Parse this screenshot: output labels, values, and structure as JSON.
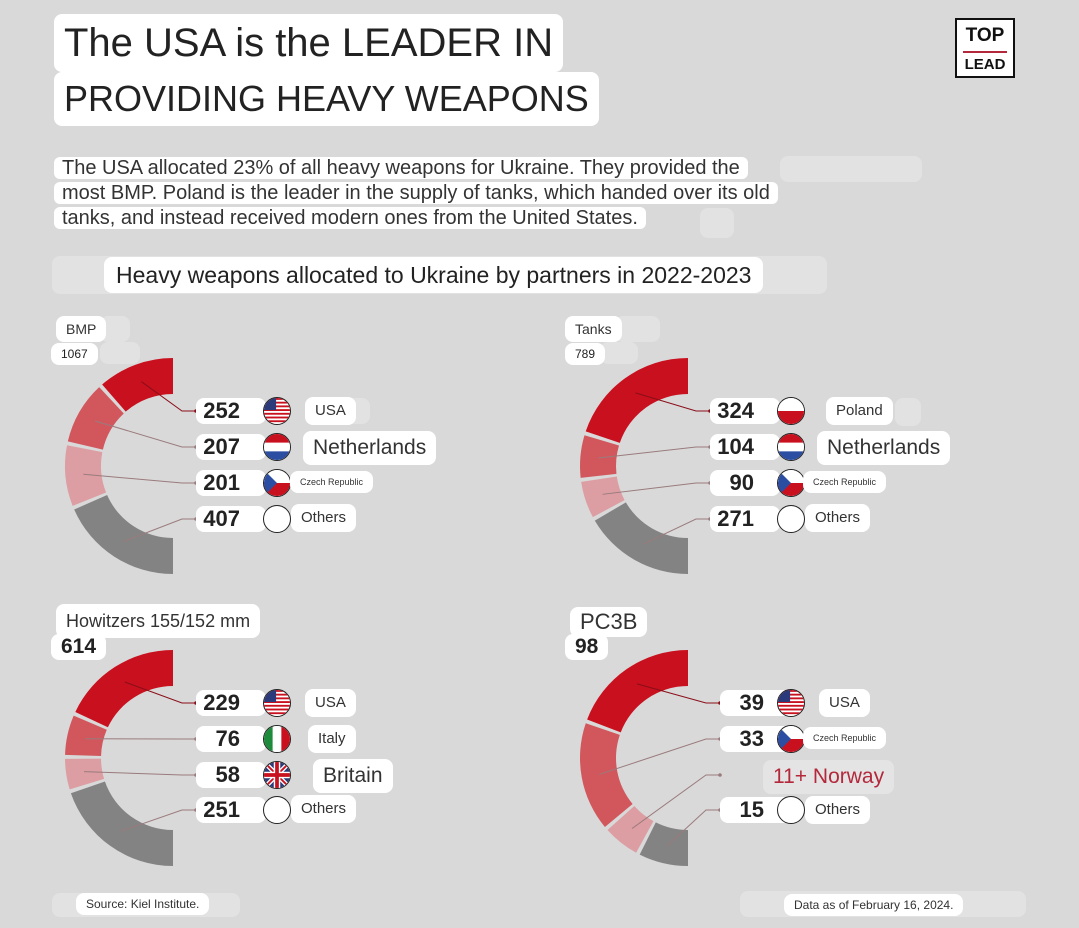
{
  "header": {
    "title_line1": "The USA is the LEADER IN",
    "title_line2": "PROVIDING HEAVY WEAPONS",
    "logo_top": "TOP",
    "logo_bottom": "LEAD"
  },
  "description": {
    "line1": "The USA allocated 23% of all heavy weapons for Ukraine. They provided the",
    "line2": "most BMP. Poland is the leader in the supply of tanks, which handed over its old",
    "line3": "tanks, and instead received modern ones from the United States."
  },
  "subtitle": "Heavy weapons allocated to Ukraine by partners in 2022-2023",
  "colors": {
    "red": "#c8101e",
    "mid_red": "#d1575d",
    "pink": "#dc9ea2",
    "gray": "#838383",
    "norway_text": "#b3283b"
  },
  "chart_data": [
    {
      "type": "pie",
      "title": "BMP",
      "total": "1067",
      "categories": [
        "USA",
        "Netherlands",
        "Czech Republic",
        "Others"
      ],
      "values": [
        252,
        207,
        201,
        407
      ],
      "labels": [
        "252",
        "207",
        "201",
        "407"
      ],
      "flags": [
        "usa-flag-icon",
        "netherlands-flag-icon",
        "czech-flag-icon",
        "empty-flag-icon"
      ]
    },
    {
      "type": "pie",
      "title": "Tanks",
      "total": "789",
      "categories": [
        "Poland",
        "Netherlands",
        "Czech Republic",
        "Others"
      ],
      "values": [
        324,
        104,
        90,
        271
      ],
      "labels": [
        "324",
        "104",
        "90",
        "271"
      ],
      "flags": [
        "poland-flag-icon",
        "netherlands-flag-icon",
        "czech-flag-icon",
        "empty-flag-icon"
      ]
    },
    {
      "type": "pie",
      "title": "Howitzers 155/152 mm",
      "total": "614",
      "categories": [
        "USA",
        "Italy",
        "Britain",
        "Others"
      ],
      "values": [
        229,
        76,
        58,
        251
      ],
      "labels": [
        "229",
        "76",
        "58",
        "251"
      ],
      "flags": [
        "usa-flag-icon",
        "italy-flag-icon",
        "uk-flag-icon",
        "empty-flag-icon"
      ]
    },
    {
      "type": "pie",
      "title": "PC3B",
      "total": "98",
      "categories": [
        "USA",
        "Czech Republic",
        "Norway",
        "Others"
      ],
      "values": [
        39,
        33,
        11,
        15
      ],
      "labels": [
        "39",
        "33",
        "11+ Norway",
        "15"
      ],
      "flags": [
        "usa-flag-icon",
        "czech-flag-icon",
        "",
        "empty-flag-icon"
      ]
    }
  ],
  "footer": {
    "source": "Source: Kiel Institute.",
    "date": "Data as of February 16, 2024."
  }
}
